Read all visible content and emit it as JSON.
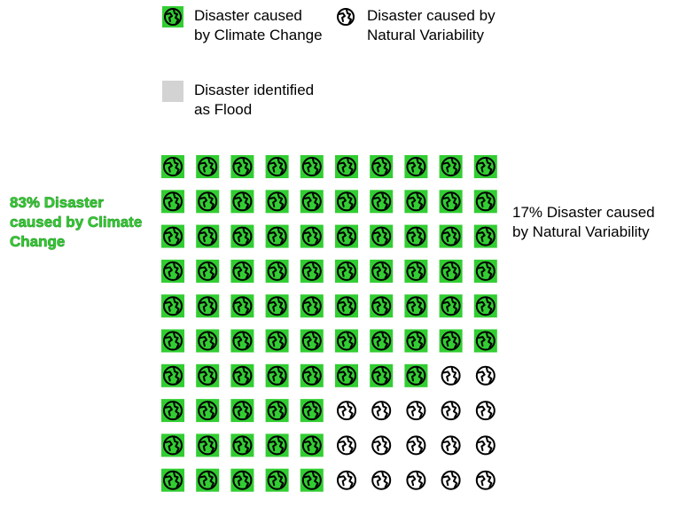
{
  "legend": {
    "climate_change": "Disaster caused\nby Climate Change",
    "natural_variability": "Disaster caused by\nNatural Variability",
    "flood": "Disaster identified\nas Flood"
  },
  "labels": {
    "climate_change": "83% Disaster\ncaused by Climate\nChange",
    "natural_variability": "17% Disaster caused\nby Natural Variability"
  },
  "icons": {
    "unit": "globe-icon"
  },
  "colors": {
    "climate_change_fill": "#32cd32",
    "flood_fill": "#d3d3d3",
    "icon_stroke": "#000000"
  },
  "chart_data": {
    "type": "waffle",
    "rows": 10,
    "cols": 10,
    "total": 100,
    "categories": [
      "Disaster caused by Climate Change",
      "Disaster caused by Natural Variability"
    ],
    "values": [
      83,
      17
    ],
    "row_counts_climate_change": [
      10,
      10,
      10,
      10,
      10,
      10,
      8,
      5,
      5,
      5
    ],
    "flood_count": 0
  }
}
